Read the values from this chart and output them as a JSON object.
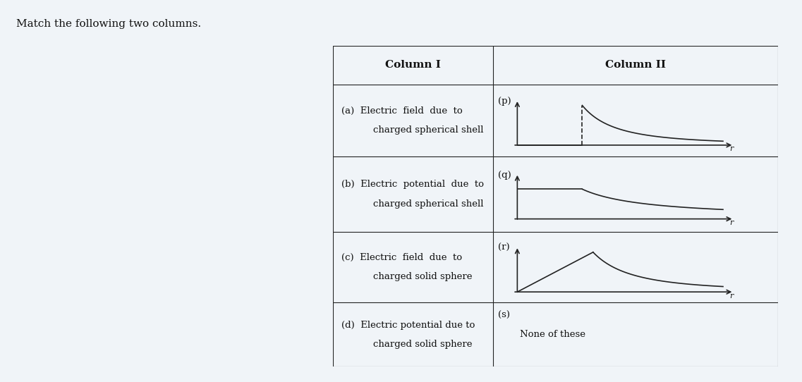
{
  "title": "Match the following two columns.",
  "col1_header": "Column I",
  "col2_header": "Column II",
  "rows": [
    {
      "label": "(a)",
      "text1": "Electric  field  due  to",
      "text2": "charged spherical shell",
      "graph_label": "(p)"
    },
    {
      "label": "(b)",
      "text1": "Electric  potential  due  to",
      "text2": "charged spherical shell",
      "graph_label": "(q)"
    },
    {
      "label": "(c)",
      "text1": "Electric  field  due  to",
      "text2": "charged solid sphere",
      "graph_label": "(r)"
    },
    {
      "label": "(d)",
      "text1": "Electric potential due to",
      "text2": "charged solid sphere",
      "graph_label": "(s)",
      "text_only": "None of these"
    }
  ],
  "bg_color": "#f0f4f8",
  "table_bg": "#ffffff",
  "line_color": "#222222",
  "graph_line_color": "#222222",
  "font_size": 10,
  "header_font_size": 11
}
